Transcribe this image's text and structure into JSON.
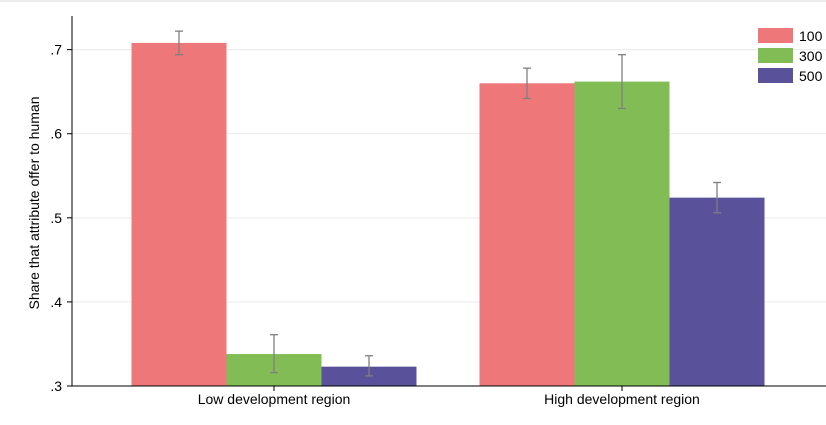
{
  "chart_data": {
    "type": "bar",
    "title": "",
    "xlabel": "",
    "ylabel": "Share that attribute offer to human",
    "ylim": [
      0.3,
      0.74
    ],
    "yticks": [
      0.3,
      0.4,
      0.5,
      0.6,
      0.7
    ],
    "ytick_labels": [
      ".3",
      ".4",
      ".5",
      ".6",
      ".7"
    ],
    "grid": "horizontal",
    "legend_position": "top-right",
    "categories": [
      "Low development region",
      "High development region"
    ],
    "series": [
      {
        "name": "100",
        "color": "#ee7879",
        "values": [
          0.708,
          0.66
        ],
        "ci_low": [
          0.694,
          0.642
        ],
        "ci_high": [
          0.722,
          0.678
        ]
      },
      {
        "name": "300",
        "color": "#82bc55",
        "values": [
          0.338,
          0.662
        ],
        "ci_low": [
          0.316,
          0.63
        ],
        "ci_high": [
          0.361,
          0.694
        ]
      },
      {
        "name": "500",
        "color": "#5a519b",
        "values": [
          0.323,
          0.524
        ],
        "ci_low": [
          0.312,
          0.506
        ],
        "ci_high": [
          0.336,
          0.542
        ]
      }
    ]
  }
}
